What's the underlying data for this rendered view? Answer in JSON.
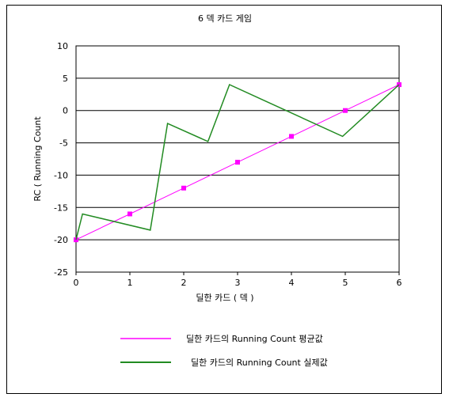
{
  "chart_data": {
    "type": "line",
    "title": "6 덱 카드 게임",
    "xlabel": "딜한 카드 ( 덱 )",
    "ylabel": "RC ( Running Count",
    "xlim": [
      0,
      6
    ],
    "ylim": [
      -25,
      10
    ],
    "x_ticks": [
      "0",
      "1",
      "2",
      "3",
      "4",
      "5",
      "6"
    ],
    "y_ticks": [
      "10",
      "5",
      "0",
      "-5",
      "-10",
      "-15",
      "-20",
      "-25"
    ],
    "grid": "horizontal",
    "legend_position": "bottom",
    "series": [
      {
        "name": "딜한 카드의 Running Count 평균값",
        "color": "#ff00ff",
        "marker": "square",
        "x": [
          0,
          1,
          2,
          3,
          4,
          5,
          6
        ],
        "y": [
          -20,
          -16,
          -12,
          -8,
          -4,
          0,
          4
        ]
      },
      {
        "name": "딜한 카드의 Running Count 실제값",
        "color": "#228b22",
        "marker": "none",
        "x": [
          0,
          0.12,
          1.38,
          1.7,
          2.45,
          2.85,
          4.95,
          6
        ],
        "y": [
          -20,
          -16,
          -18.5,
          -2,
          -4.8,
          4,
          -4,
          4
        ]
      }
    ]
  }
}
